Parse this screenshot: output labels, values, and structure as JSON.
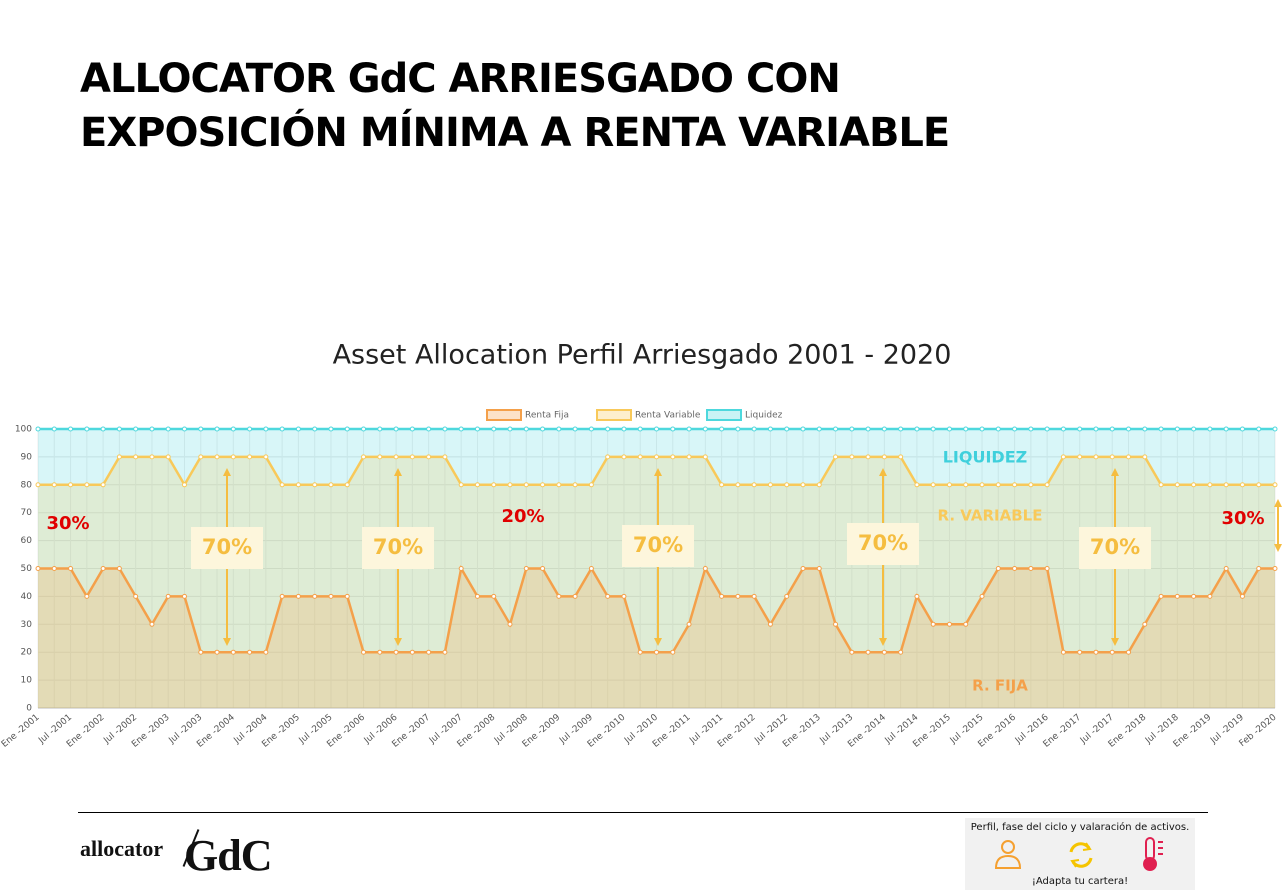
{
  "header": {
    "title": [
      "ALLOCATOR GdC ARRIESGADO CON",
      "EXPOSICIÓN MÍNIMA A RENTA VARIABLE"
    ]
  },
  "chart_data": {
    "type": "area",
    "stacked": true,
    "title": "Asset Allocation Perfil Arriesgado 2001 - 2020",
    "categories": [
      "Ene -2001",
      null,
      "Jul -2001",
      null,
      "Ene -2002",
      null,
      "Jul -2002",
      null,
      "Ene -2003",
      null,
      "Jul -2003",
      null,
      "Ene -2004",
      null,
      "Jul -2004",
      null,
      "Ene -2005",
      null,
      "Jul -2005",
      null,
      "Ene -2006",
      null,
      "Jul -2006",
      null,
      "Ene -2007",
      null,
      "Jul -2007",
      null,
      "Ene -2008",
      null,
      "Jul -2008",
      null,
      "Ene -2009",
      null,
      "Jul -2009",
      null,
      "Ene -2010",
      null,
      "Jul -2010",
      null,
      "Ene -2011",
      null,
      "Jul -2011",
      null,
      "Ene -2012",
      null,
      "Jul -2012",
      null,
      "Ene -2013",
      null,
      "Jul -2013",
      null,
      "Ene -2014",
      null,
      "Jul -2014",
      null,
      "Ene -2015",
      null,
      "Jul -2015",
      null,
      "Ene -2016",
      null,
      "Jul -2016",
      null,
      "Ene -2017",
      null,
      "Jul -2017",
      null,
      "Ene -2018",
      null,
      "Jul -2018",
      null,
      "Ene -2019",
      null,
      "Jul -2019",
      null,
      "Feb -2020"
    ],
    "series": [
      {
        "name": "Renta Fija",
        "color": "#f4a04a",
        "values": [
          50,
          50,
          50,
          40,
          50,
          50,
          40,
          30,
          40,
          40,
          20,
          20,
          20,
          20,
          20,
          40,
          40,
          40,
          40,
          40,
          20,
          20,
          20,
          20,
          20,
          20,
          50,
          40,
          40,
          30,
          50,
          50,
          40,
          40,
          50,
          40,
          40,
          20,
          20,
          20,
          30,
          50,
          40,
          40,
          40,
          30,
          40,
          50,
          50,
          30,
          20,
          20,
          20,
          20,
          40,
          30,
          30,
          30,
          40,
          50,
          50,
          50,
          50,
          20,
          20,
          20,
          20,
          20,
          30,
          40,
          40,
          40,
          40,
          50,
          40,
          50,
          50
        ]
      },
      {
        "name": "Renta Variable",
        "color": "#f8c95a",
        "values": [
          30,
          30,
          30,
          40,
          30,
          40,
          50,
          60,
          50,
          40,
          70,
          70,
          70,
          70,
          70,
          40,
          40,
          40,
          40,
          40,
          70,
          70,
          70,
          70,
          70,
          70,
          30,
          40,
          40,
          50,
          30,
          30,
          40,
          40,
          30,
          50,
          50,
          70,
          70,
          70,
          60,
          40,
          40,
          40,
          40,
          50,
          40,
          30,
          30,
          60,
          70,
          70,
          70,
          70,
          40,
          50,
          50,
          50,
          40,
          30,
          30,
          30,
          30,
          70,
          70,
          70,
          70,
          70,
          60,
          40,
          40,
          40,
          40,
          30,
          40,
          30,
          30
        ]
      },
      {
        "name": "Liquidez",
        "color": "#4dd8dd",
        "values": [
          20,
          20,
          20,
          20,
          20,
          10,
          10,
          10,
          10,
          20,
          10,
          10,
          10,
          10,
          10,
          20,
          20,
          20,
          20,
          20,
          10,
          10,
          10,
          10,
          10,
          10,
          20,
          20,
          20,
          20,
          20,
          20,
          20,
          20,
          20,
          10,
          10,
          10,
          10,
          10,
          10,
          10,
          20,
          20,
          20,
          20,
          20,
          20,
          20,
          10,
          10,
          10,
          10,
          10,
          20,
          20,
          20,
          20,
          20,
          20,
          20,
          20,
          20,
          10,
          10,
          10,
          10,
          10,
          10,
          20,
          20,
          20,
          20,
          20,
          20,
          20,
          20
        ]
      }
    ],
    "ylim": [
      0,
      100
    ],
    "yticks": [
      0,
      10,
      20,
      30,
      40,
      50,
      60,
      70,
      80,
      90,
      100
    ],
    "grid": true,
    "legend": "top",
    "annotations": [
      "LIQUIDEZ",
      "R. VARIABLE",
      "R. FIJA",
      "30%",
      "20%",
      "70%",
      "70%",
      "70%",
      "70%",
      "70%",
      "30%"
    ]
  },
  "footer": {
    "logo": [
      "allocator",
      "GdC"
    ],
    "badge": [
      "Perfil, fase del ciclo y valaración de activos.",
      "¡Adapta tu cartera!"
    ]
  }
}
